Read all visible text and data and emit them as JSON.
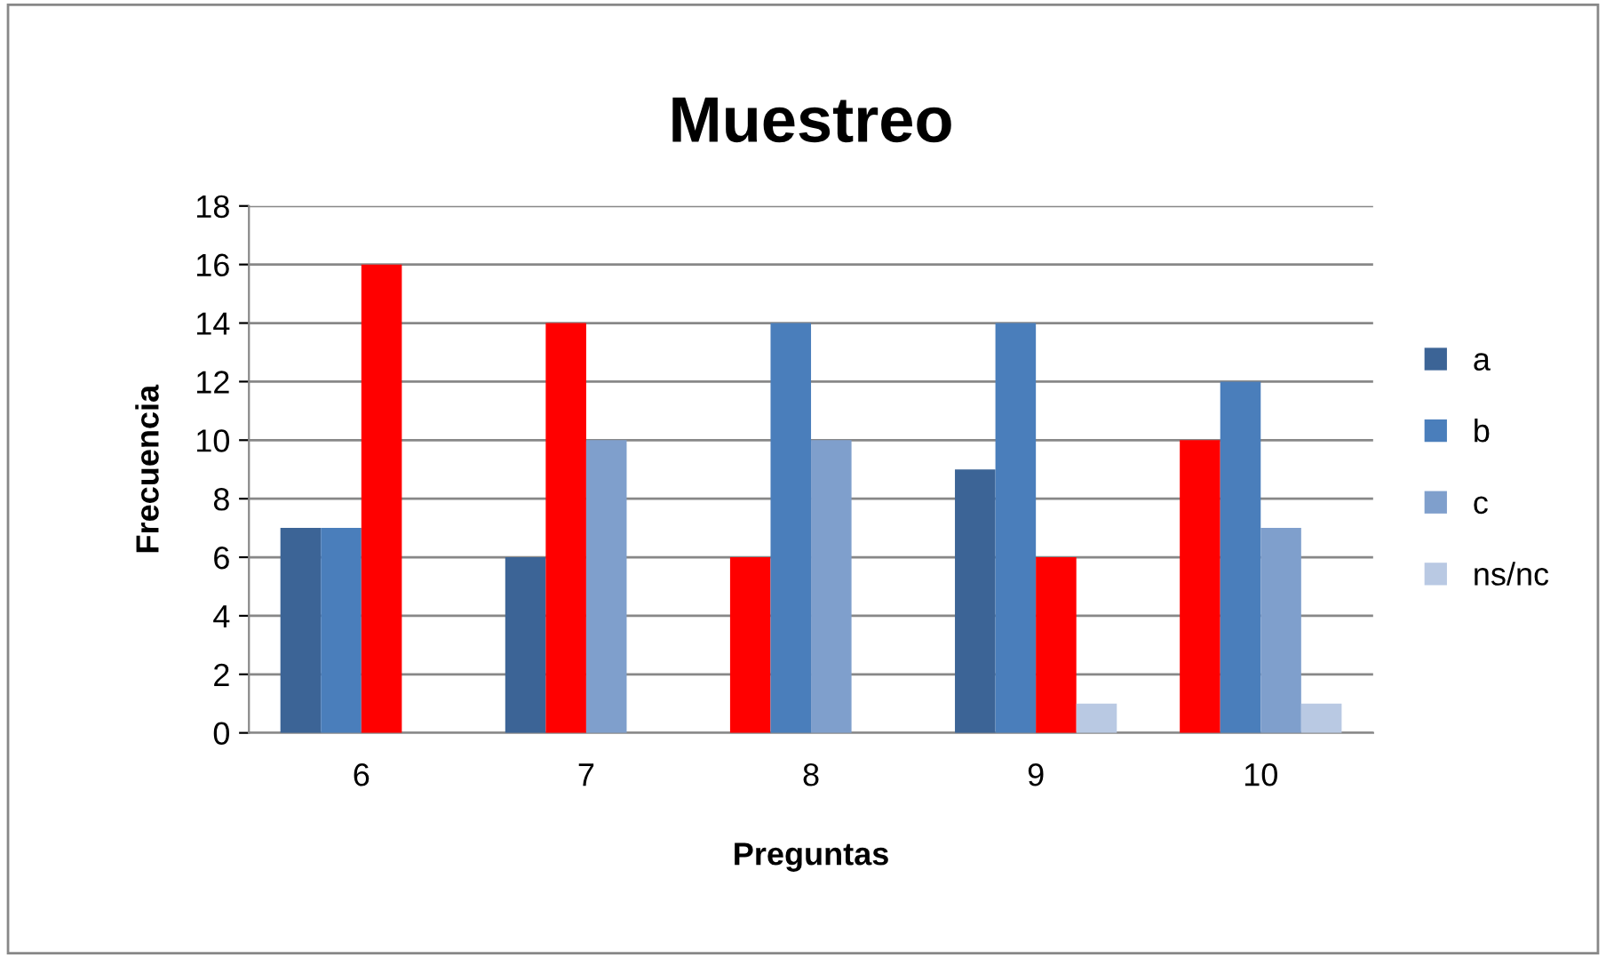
{
  "chart_data": {
    "type": "bar",
    "title": "Muestreo",
    "xlabel": "Preguntas",
    "ylabel": "Frecuencia",
    "categories": [
      "6",
      "7",
      "8",
      "9",
      "10"
    ],
    "series": [
      {
        "name": "a",
        "color": "#3c6496",
        "colors": [
          "#3c6496",
          "#3c6496",
          "#ff0000",
          "#3c6496",
          "#ff0000"
        ],
        "values": [
          7,
          6,
          6,
          9,
          10
        ]
      },
      {
        "name": "b",
        "color": "#4a7ebb",
        "colors": [
          "#4a7ebb",
          "#ff0000",
          "#4a7ebb",
          "#4a7ebb",
          "#4a7ebb"
        ],
        "values": [
          7,
          14,
          14,
          14,
          12
        ]
      },
      {
        "name": "c",
        "color": "#7f9fcc",
        "colors": [
          "#ff0000",
          "#7f9fcc",
          "#7f9fcc",
          "#ff0000",
          "#7f9fcc"
        ],
        "values": [
          16,
          10,
          10,
          6,
          7
        ]
      },
      {
        "name": "ns/nc",
        "color": "#b9c9e3",
        "colors": [
          "#b9c9e3",
          "#b9c9e3",
          "#b9c9e3",
          "#b9c9e3",
          "#b9c9e3"
        ],
        "values": [
          0,
          0,
          0,
          1,
          1
        ]
      }
    ],
    "ylim": [
      0,
      18
    ],
    "yticks": [
      0,
      2,
      4,
      6,
      8,
      10,
      12,
      14,
      16,
      18
    ],
    "grid": "y",
    "legend": "right"
  }
}
